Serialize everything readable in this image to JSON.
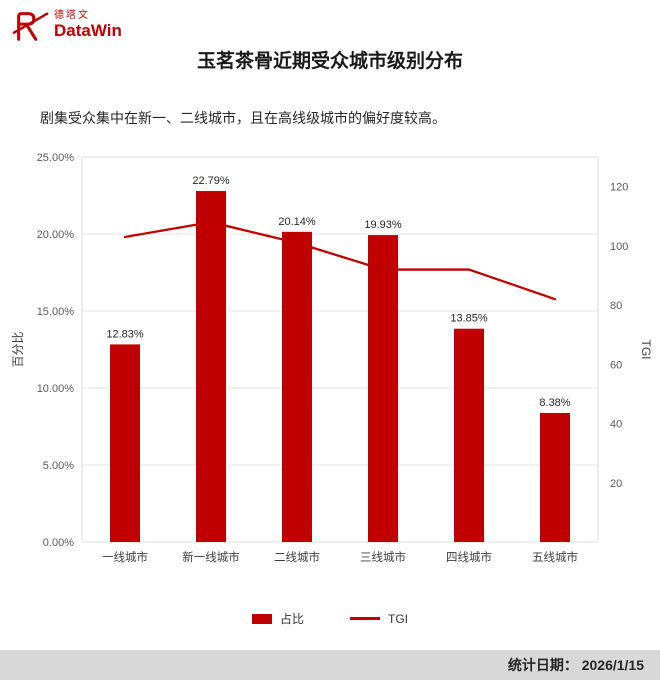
{
  "brand": {
    "logo_text_cn": "德塔文",
    "logo_text_en": "DataWin",
    "accent_color": "#c00000"
  },
  "header": {
    "title": "玉茗茶骨近期受众城市级别分布",
    "subtitle": "剧集受众集中在新一、二线城市，且在高线级城市的偏好度较高。"
  },
  "chart_data": {
    "type": "bar+line",
    "categories": [
      "一线城市",
      "新一线城市",
      "二线城市",
      "三线城市",
      "四线城市",
      "五线城市"
    ],
    "series": [
      {
        "name": "占比",
        "type": "bar",
        "unit": "%",
        "values": [
          12.83,
          22.79,
          20.14,
          19.93,
          13.85,
          8.38
        ],
        "labels": [
          "12.83%",
          "22.79%",
          "20.14%",
          "19.93%",
          "13.85%",
          "8.38%"
        ],
        "color": "#c00000"
      },
      {
        "name": "TGI",
        "type": "line",
        "values": [
          103,
          108,
          101,
          92,
          92,
          82
        ],
        "color": "#c00000"
      }
    ],
    "left_axis": {
      "label": "百分比",
      "min": 0,
      "max": 25,
      "tick_values": [
        0,
        5,
        10,
        15,
        20,
        25
      ],
      "tick_labels": [
        "0.00%",
        "5.00%",
        "10.00%",
        "15.00%",
        "20.00%",
        "25.00%"
      ]
    },
    "right_axis": {
      "label": "TGI",
      "min": 0,
      "max": 130,
      "tick_values": [
        20,
        40,
        60,
        80,
        100,
        120
      ]
    },
    "legend": [
      "占比",
      "TGI"
    ],
    "grid": true,
    "legend_position": "bottom"
  },
  "footer": {
    "text": "统计日期： 2026/1/15"
  }
}
